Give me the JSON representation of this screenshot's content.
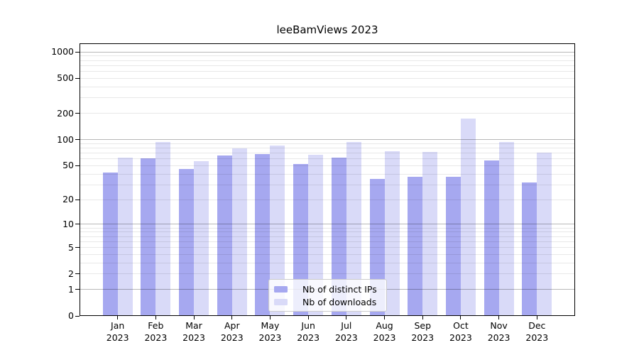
{
  "chart_data": {
    "type": "bar",
    "title": "leeBamViews 2023",
    "categories": [
      "Jan",
      "Feb",
      "Mar",
      "Apr",
      "May",
      "Jun",
      "Jul",
      "Aug",
      "Sep",
      "Oct",
      "Nov",
      "Dec"
    ],
    "year": "2023",
    "series": [
      {
        "name": "Nb of distinct IPs",
        "color": "#a6a8f0",
        "values": [
          42,
          61,
          46,
          66,
          68,
          52,
          62,
          35,
          37,
          37,
          58,
          32
        ]
      },
      {
        "name": "Nb of downloads",
        "color": "#d9daf8",
        "values": [
          62,
          94,
          56,
          80,
          85,
          67,
          94,
          73,
          72,
          175,
          94,
          71
        ]
      }
    ],
    "xlabel": "",
    "ylabel": "",
    "y_axis": {
      "scale": "log1p",
      "ticks": [
        0,
        1,
        2,
        5,
        10,
        20,
        50,
        100,
        200,
        500,
        1000
      ],
      "ylim": [
        0,
        1256
      ],
      "grid_major_at": [
        1,
        10,
        100,
        1000
      ],
      "grid": true
    },
    "legend_position": "lower center",
    "colors": {
      "grid_major": "rgba(0,0,0,0.28)",
      "grid_minor": "rgba(0,0,0,0.09)",
      "spine": "#000000",
      "text": "#000000",
      "background": "#ffffff"
    }
  }
}
